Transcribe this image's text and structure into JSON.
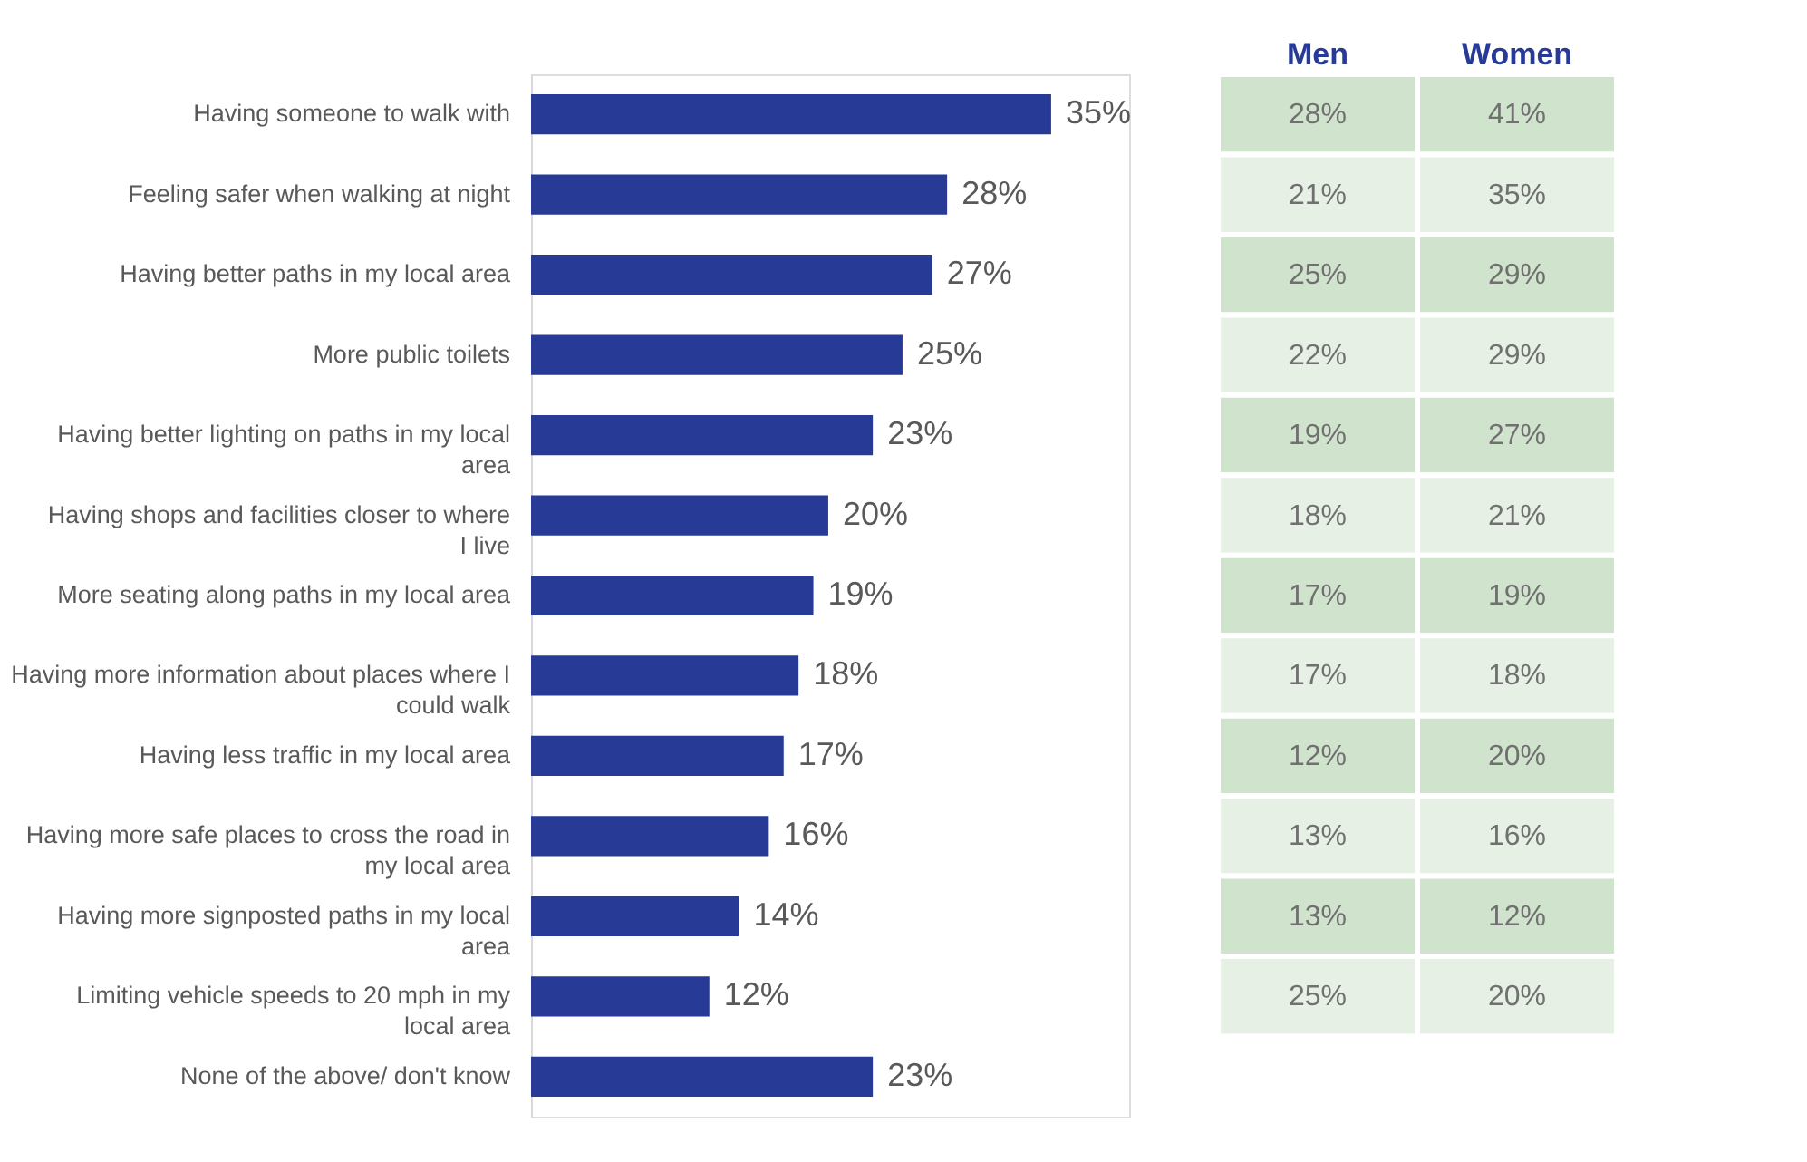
{
  "chart_data": [
    {
      "type": "bar",
      "orientation": "horizontal",
      "color": "#263a96",
      "categories": [
        "Having someone to walk with",
        "Feeling safer when walking at night",
        "Having better paths in my local area",
        "More public toilets",
        "Having better lighting on paths in my local area",
        "Having shops and facilities closer to where I live",
        "More seating along paths in my local area",
        "Having more information about places where I could walk",
        "Having less traffic in my local area",
        "Having more safe places to cross the road in my local area",
        "Having more signposted paths in my local area",
        "Limiting vehicle speeds to 20 mph in my local area",
        "None of the above/ don't know"
      ],
      "values": [
        35,
        28,
        27,
        25,
        23,
        20,
        19,
        18,
        17,
        16,
        14,
        12,
        23
      ],
      "value_labels": [
        "35%",
        "28%",
        "27%",
        "25%",
        "23%",
        "20%",
        "19%",
        "18%",
        "17%",
        "16%",
        "14%",
        "12%",
        "23%"
      ],
      "grid": false
    },
    {
      "type": "other",
      "categories": [
        "Men",
        "Women"
      ],
      "cell_labels": [
        [
          "28%",
          "41%"
        ],
        [
          "21%",
          "35%"
        ],
        [
          "25%",
          "29%"
        ],
        [
          "22%",
          "29%"
        ],
        [
          "19%",
          "27%"
        ],
        [
          "18%",
          "21%"
        ],
        [
          "17%",
          "19%"
        ],
        [
          "17%",
          "18%"
        ],
        [
          "12%",
          "20%"
        ],
        [
          "13%",
          "16%"
        ],
        [
          "13%",
          "12%"
        ],
        [
          "25%",
          "20%"
        ]
      ]
    }
  ]
}
